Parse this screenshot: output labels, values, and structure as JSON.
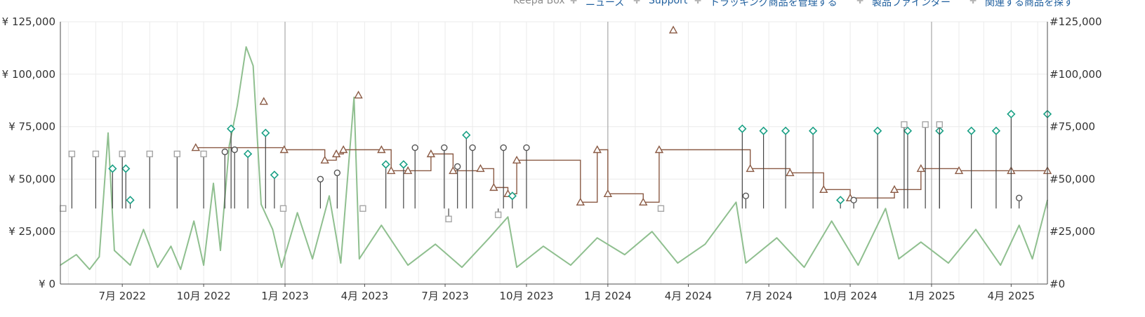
{
  "nav": {
    "items": [
      {
        "label": "Keepa Box",
        "muted": true
      },
      {
        "label": "ニュース"
      },
      {
        "label": "Support"
      },
      {
        "label": "トラッキング商品を管理する"
      },
      {
        "label": "製品ファインダー"
      },
      {
        "label": "関連する商品を探す"
      }
    ],
    "separator_icon": "plus-icon"
  },
  "colors": {
    "sales_rank": "#8fbf8f",
    "amazon_new": "#8a5a44",
    "new_offer": "#1aa085",
    "used_offer": "#555555",
    "collectible": "#a6a6a6",
    "month_grid": "#ebebeb",
    "year_grid": "#a9a9a9"
  },
  "chart_data": {
    "type": "line",
    "left_axis": {
      "labels": [
        "¥ 0",
        "¥ 25,000",
        "¥ 50,000",
        "¥ 75,000",
        "¥ 100,000",
        "¥ 125,000"
      ],
      "values": [
        0,
        25000,
        50000,
        75000,
        100000,
        125000
      ]
    },
    "right_axis": {
      "labels": [
        "#0",
        "#25,000",
        "#50,000",
        "#75,000",
        "#100,000",
        "#125,000"
      ],
      "values": [
        0,
        25000,
        50000,
        75000,
        100000,
        125000
      ]
    },
    "ylim": [
      0,
      125000
    ],
    "x_range": [
      "2022-04-22",
      "2025-05-12"
    ],
    "x_ticks": [
      {
        "label": "7月 2022",
        "date": "2022-07-01"
      },
      {
        "label": "10月 2022",
        "date": "2022-10-01"
      },
      {
        "label": "1月 2023",
        "date": "2023-01-01"
      },
      {
        "label": "4月 2023",
        "date": "2023-04-01"
      },
      {
        "label": "7月 2023",
        "date": "2023-07-01"
      },
      {
        "label": "10月 2023",
        "date": "2023-10-01"
      },
      {
        "label": "1月 2024",
        "date": "2024-01-01"
      },
      {
        "label": "4月 2024",
        "date": "2024-04-01"
      },
      {
        "label": "7月 2024",
        "date": "2024-07-01"
      },
      {
        "label": "10月 2024",
        "date": "2024-10-01"
      },
      {
        "label": "1月 2025",
        "date": "2025-01-01"
      },
      {
        "label": "4月 2025",
        "date": "2025-04-01"
      }
    ],
    "year_lines": [
      "2023-01-01",
      "2024-01-01",
      "2025-01-01"
    ],
    "grid": true,
    "legend": "none",
    "series": [
      {
        "key": "sales_rank",
        "style": "area-line",
        "color_key": "sales_rank",
        "points": [
          [
            "2022-04-22",
            9000
          ],
          [
            "2022-05-10",
            14000
          ],
          [
            "2022-05-25",
            7000
          ],
          [
            "2022-06-05",
            13000
          ],
          [
            "2022-06-15",
            72000
          ],
          [
            "2022-06-22",
            16000
          ],
          [
            "2022-07-10",
            9000
          ],
          [
            "2022-07-25",
            26000
          ],
          [
            "2022-08-10",
            8000
          ],
          [
            "2022-08-25",
            18000
          ],
          [
            "2022-09-05",
            7000
          ],
          [
            "2022-09-20",
            30000
          ],
          [
            "2022-10-01",
            9000
          ],
          [
            "2022-10-12",
            48000
          ],
          [
            "2022-10-20",
            16000
          ],
          [
            "2022-10-30",
            66000
          ],
          [
            "2022-11-08",
            85000
          ],
          [
            "2022-11-18",
            113000
          ],
          [
            "2022-11-26",
            104000
          ],
          [
            "2022-12-05",
            38000
          ],
          [
            "2022-12-18",
            26000
          ],
          [
            "2022-12-28",
            8000
          ],
          [
            "2023-01-15",
            34000
          ],
          [
            "2023-02-01",
            12000
          ],
          [
            "2023-02-20",
            42000
          ],
          [
            "2023-03-05",
            10000
          ],
          [
            "2023-03-20",
            89000
          ],
          [
            "2023-03-26",
            12000
          ],
          [
            "2023-04-20",
            28000
          ],
          [
            "2023-05-20",
            9000
          ],
          [
            "2023-06-20",
            19000
          ],
          [
            "2023-07-20",
            8000
          ],
          [
            "2023-08-20",
            22000
          ],
          [
            "2023-09-10",
            32000
          ],
          [
            "2023-09-20",
            8000
          ],
          [
            "2023-10-20",
            18000
          ],
          [
            "2023-11-20",
            9000
          ],
          [
            "2023-12-20",
            22000
          ],
          [
            "2024-01-20",
            14000
          ],
          [
            "2024-02-20",
            25000
          ],
          [
            "2024-03-20",
            10000
          ],
          [
            "2024-04-20",
            19000
          ],
          [
            "2024-05-25",
            39000
          ],
          [
            "2024-06-05",
            10000
          ],
          [
            "2024-07-10",
            22000
          ],
          [
            "2024-08-10",
            8000
          ],
          [
            "2024-09-10",
            30000
          ],
          [
            "2024-10-10",
            9000
          ],
          [
            "2024-11-10",
            36000
          ],
          [
            "2024-11-25",
            12000
          ],
          [
            "2024-12-20",
            20000
          ],
          [
            "2025-01-20",
            10000
          ],
          [
            "2025-02-20",
            26000
          ],
          [
            "2025-03-20",
            9000
          ],
          [
            "2025-04-10",
            28000
          ],
          [
            "2025-04-25",
            12000
          ],
          [
            "2025-05-12",
            40000
          ]
        ]
      },
      {
        "key": "amazon_new",
        "style": "step-markers",
        "marker": "triangle",
        "color_key": "amazon_new",
        "points": [
          [
            "2022-09-22",
            65000
          ],
          [
            "2022-12-31",
            64000
          ],
          [
            "2023-02-15",
            59000
          ],
          [
            "2023-02-28",
            62000
          ],
          [
            "2023-03-08",
            64000
          ],
          [
            "2023-04-20",
            64000
          ],
          [
            "2023-05-01",
            54000
          ],
          [
            "2023-05-20",
            54000
          ],
          [
            "2023-06-15",
            62000
          ],
          [
            "2023-07-10",
            54000
          ],
          [
            "2023-08-10",
            55000
          ],
          [
            "2023-08-25",
            46000
          ],
          [
            "2023-09-10",
            43000
          ],
          [
            "2023-09-20",
            59000
          ],
          [
            "2023-12-01",
            39000
          ],
          [
            "2023-12-20",
            64000
          ],
          [
            "2024-01-01",
            43000
          ],
          [
            "2024-02-10",
            39000
          ],
          [
            "2024-02-28",
            64000
          ],
          [
            "2024-06-10",
            55000
          ],
          [
            "2024-07-25",
            53000
          ],
          [
            "2024-09-01",
            45000
          ],
          [
            "2024-10-01",
            41000
          ],
          [
            "2024-11-20",
            45000
          ],
          [
            "2024-12-20",
            55000
          ],
          [
            "2025-02-01",
            54000
          ],
          [
            "2025-04-01",
            54000
          ],
          [
            "2025-05-12",
            54000
          ]
        ]
      },
      {
        "key": "new_offer",
        "style": "markers",
        "marker": "diamond",
        "color_key": "new_offer",
        "points": [
          [
            "2022-06-20",
            55000
          ],
          [
            "2022-07-05",
            55000
          ],
          [
            "2022-07-10",
            40000
          ],
          [
            "2022-11-01",
            74000
          ],
          [
            "2022-11-20",
            62000
          ],
          [
            "2022-12-10",
            72000
          ],
          [
            "2022-12-20",
            52000
          ],
          [
            "2023-04-25",
            57000
          ],
          [
            "2023-05-15",
            57000
          ],
          [
            "2023-07-25",
            71000
          ],
          [
            "2023-09-15",
            42000
          ],
          [
            "2024-06-01",
            74000
          ],
          [
            "2024-06-25",
            73000
          ],
          [
            "2024-07-20",
            73000
          ],
          [
            "2024-08-20",
            73000
          ],
          [
            "2024-09-20",
            40000
          ],
          [
            "2024-11-01",
            73000
          ],
          [
            "2024-12-05",
            73000
          ],
          [
            "2025-01-10",
            73000
          ],
          [
            "2025-02-15",
            73000
          ],
          [
            "2025-03-15",
            73000
          ],
          [
            "2025-04-01",
            81000
          ],
          [
            "2025-05-12",
            81000
          ]
        ]
      },
      {
        "key": "used_offer",
        "style": "markers",
        "marker": "circle",
        "color_key": "used_offer",
        "points": [
          [
            "2022-10-25",
            63000
          ],
          [
            "2022-11-05",
            64000
          ],
          [
            "2023-02-10",
            50000
          ],
          [
            "2023-03-01",
            53000
          ],
          [
            "2023-05-28",
            65000
          ],
          [
            "2023-06-30",
            65000
          ],
          [
            "2023-07-15",
            56000
          ],
          [
            "2023-08-01",
            65000
          ],
          [
            "2023-09-05",
            65000
          ],
          [
            "2023-10-01",
            65000
          ],
          [
            "2024-06-05",
            42000
          ],
          [
            "2024-10-05",
            40000
          ],
          [
            "2025-04-10",
            41000
          ]
        ]
      },
      {
        "key": "collectible",
        "style": "markers",
        "marker": "square",
        "color_key": "collectible",
        "points": [
          [
            "2022-04-25",
            36000
          ],
          [
            "2022-05-05",
            62000
          ],
          [
            "2022-06-01",
            62000
          ],
          [
            "2022-07-01",
            62000
          ],
          [
            "2022-08-01",
            62000
          ],
          [
            "2022-09-01",
            62000
          ],
          [
            "2022-10-01",
            62000
          ],
          [
            "2022-12-30",
            36000
          ],
          [
            "2023-03-30",
            36000
          ],
          [
            "2023-07-05",
            31000
          ],
          [
            "2023-08-30",
            33000
          ],
          [
            "2024-03-01",
            36000
          ],
          [
            "2024-12-01",
            76000
          ],
          [
            "2024-12-25",
            76000
          ],
          [
            "2025-01-10",
            76000
          ]
        ]
      }
    ],
    "annotations": [
      {
        "label": "",
        "date": "2024-03-15",
        "value": 121000,
        "marker": "triangle",
        "color_key": "amazon_new"
      },
      {
        "label": "",
        "date": "2023-03-25",
        "value": 90000,
        "marker": "triangle",
        "color_key": "amazon_new"
      },
      {
        "label": "",
        "date": "2022-12-08",
        "value": 87000,
        "marker": "triangle",
        "color_key": "amazon_new"
      }
    ]
  }
}
